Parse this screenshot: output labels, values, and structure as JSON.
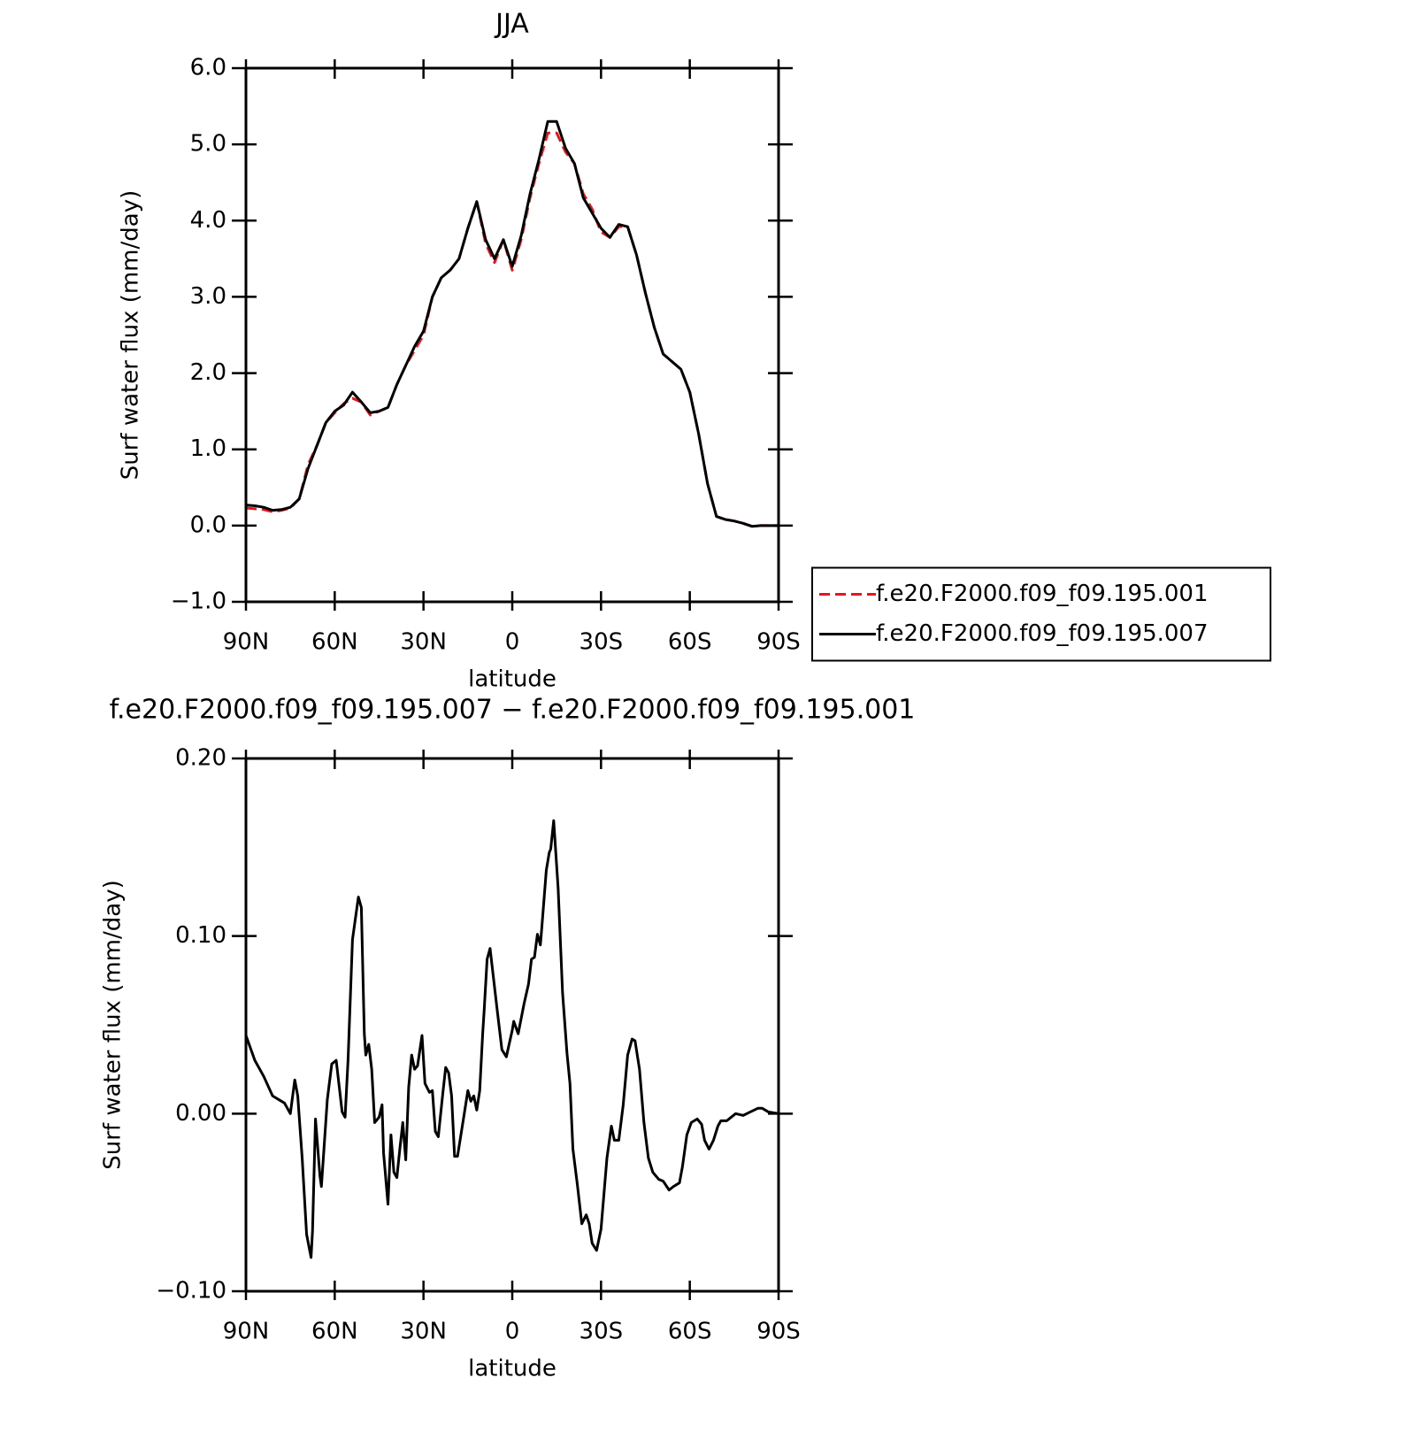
{
  "chart_data": [
    {
      "type": "line",
      "title": "JJA",
      "xlabel": "latitude",
      "ylabel": "Surf water flux (mm/day)",
      "x": [
        90,
        87,
        84,
        81,
        78,
        75,
        72,
        69,
        66,
        63,
        60,
        57,
        54,
        51,
        48,
        45,
        42,
        39,
        36,
        33,
        30,
        27,
        24,
        21,
        18,
        15,
        12,
        9,
        6,
        3,
        0,
        -3,
        -6,
        -9,
        -12,
        -15,
        -18,
        -21,
        -24,
        -27,
        -30,
        -33,
        -36,
        -39,
        -42,
        -45,
        -48,
        -51,
        -54,
        -57,
        -60,
        -63,
        -66,
        -69,
        -72,
        -75,
        -78,
        -81,
        -84,
        -87,
        -90
      ],
      "series": [
        {
          "name": "f.e20.F2000.f09_f09.195.001",
          "color": "#e8151b",
          "dash": true,
          "values": [
            0.23,
            0.22,
            0.21,
            0.18,
            0.2,
            0.23,
            0.35,
            0.8,
            1.05,
            1.35,
            1.48,
            1.6,
            1.67,
            1.62,
            1.45,
            1.5,
            1.55,
            1.85,
            2.1,
            2.3,
            2.5,
            3.0,
            3.25,
            3.35,
            3.5,
            3.9,
            4.25,
            3.7,
            3.45,
            3.75,
            3.35,
            3.75,
            4.3,
            4.75,
            5.15,
            5.15,
            4.9,
            4.75,
            4.35,
            4.15,
            3.85,
            3.78,
            3.92,
            3.92,
            3.55,
            3.05,
            2.6,
            2.25,
            2.15,
            2.05,
            1.75,
            1.2,
            0.55,
            0.12,
            0.08,
            0.06,
            0.03,
            -0.01,
            0.0,
            0.0,
            0.0
          ]
        },
        {
          "name": "f.e20.F2000.f09_f09.195.007",
          "color": "#000000",
          "dash": false,
          "values": [
            0.27,
            0.26,
            0.24,
            0.2,
            0.21,
            0.24,
            0.35,
            0.75,
            1.05,
            1.35,
            1.5,
            1.58,
            1.75,
            1.62,
            1.48,
            1.5,
            1.55,
            1.85,
            2.1,
            2.35,
            2.55,
            3.0,
            3.25,
            3.35,
            3.5,
            3.9,
            4.25,
            3.75,
            3.5,
            3.75,
            3.4,
            3.8,
            4.35,
            4.8,
            5.3,
            5.3,
            4.95,
            4.75,
            4.3,
            4.1,
            3.9,
            3.78,
            3.95,
            3.92,
            3.55,
            3.05,
            2.6,
            2.25,
            2.15,
            2.05,
            1.75,
            1.2,
            0.55,
            0.12,
            0.08,
            0.06,
            0.03,
            -0.01,
            0.0,
            0.0,
            0.0
          ]
        }
      ],
      "xlim": [
        90,
        -90
      ],
      "xticks": [
        {
          "value": 90,
          "label": "90N"
        },
        {
          "value": 60,
          "label": "60N"
        },
        {
          "value": 30,
          "label": "30N"
        },
        0,
        {
          "value": -30,
          "label": "30S"
        },
        {
          "value": -60,
          "label": "60S"
        },
        {
          "value": -90,
          "label": "90S"
        }
      ],
      "ylim": [
        -1,
        6
      ],
      "yticks": [
        {
          "value": -1,
          "label": "−1.0"
        },
        {
          "value": 0,
          "label": "0.0"
        },
        {
          "value": 1,
          "label": "1.0"
        },
        {
          "value": 2,
          "label": "2.0"
        },
        {
          "value": 3,
          "label": "3.0"
        },
        {
          "value": 4,
          "label": "4.0"
        },
        {
          "value": 5,
          "label": "5.0"
        },
        {
          "value": 6,
          "label": "6.0"
        }
      ],
      "legend": "right"
    },
    {
      "type": "line",
      "title": "f.e20.F2000.f09_f09.195.007 − f.e20.F2000.f09_f09.195.001",
      "xlabel": "latitude",
      "ylabel": "Surf water flux (mm/day)",
      "x": [
        90,
        87,
        84,
        81,
        79,
        77,
        75,
        73.5,
        72.5,
        71,
        69.5,
        68,
        67.5,
        66.5,
        65,
        64.5,
        62.5,
        61,
        59.5,
        57.5,
        56.5,
        55.5,
        54,
        52,
        51,
        50,
        49.5,
        48.5,
        47.5,
        46.5,
        45,
        44,
        43.5,
        42,
        41,
        40,
        39,
        38,
        37,
        36,
        35,
        34,
        33,
        32,
        30.5,
        29.5,
        28,
        27,
        26,
        25,
        23.5,
        22.5,
        21.5,
        20.5,
        19.5,
        18.5,
        16.5,
        15,
        14,
        13,
        12,
        11,
        10,
        9.5,
        8.5,
        7.5,
        5,
        3.5,
        2,
        0,
        -0.5,
        -2,
        -4,
        -5.5,
        -6.5,
        -7.5,
        -8.5,
        -9.5,
        -10,
        -11.5,
        -12.5,
        -13,
        -14,
        -15.5,
        -17,
        -18.5,
        -19.5,
        -20.5,
        -22,
        -23.5,
        -25,
        -26,
        -27,
        -28.5,
        -30,
        -31,
        -32,
        -33.5,
        -34.5,
        -36,
        -37.5,
        -39,
        -40.5,
        -41.5,
        -43,
        -44.5,
        -46,
        -47.5,
        -49.5,
        -51,
        -53,
        -54.5,
        -56.5,
        -57.5,
        -59,
        -60.5,
        -62.5,
        -64,
        -65,
        -66.5,
        -68,
        -69.5,
        -70.5,
        -72.5,
        -74,
        -75.5,
        -78,
        -80.5,
        -83,
        -84.5,
        -86.5,
        -90
      ],
      "series": [
        {
          "color": "#000000",
          "dash": false,
          "values": [
            0.044,
            0.03,
            0.021,
            0.01,
            0.008,
            0.006,
            0.0,
            0.019,
            0.01,
            -0.025,
            -0.068,
            -0.081,
            -0.066,
            -0.003,
            -0.035,
            -0.041,
            0.008,
            0.028,
            0.03,
            0.001,
            -0.002,
            0.03,
            0.098,
            0.122,
            0.116,
            0.045,
            0.033,
            0.039,
            0.025,
            -0.005,
            -0.002,
            0.005,
            -0.022,
            -0.051,
            -0.012,
            -0.033,
            -0.036,
            -0.02,
            -0.005,
            -0.026,
            0.015,
            0.033,
            0.025,
            0.027,
            0.044,
            0.017,
            0.012,
            0.013,
            -0.01,
            -0.013,
            0.011,
            0.026,
            0.023,
            0.01,
            -0.024,
            -0.024,
            -0.003,
            0.013,
            0.007,
            0.01,
            0.002,
            0.013,
            0.045,
            0.058,
            0.087,
            0.093,
            0.057,
            0.036,
            0.032,
            0.047,
            0.052,
            0.045,
            0.062,
            0.073,
            0.087,
            0.088,
            0.101,
            0.095,
            0.105,
            0.137,
            0.147,
            0.149,
            0.165,
            0.127,
            0.068,
            0.034,
            0.017,
            -0.02,
            -0.04,
            -0.062,
            -0.057,
            -0.062,
            -0.073,
            -0.077,
            -0.065,
            -0.045,
            -0.025,
            -0.007,
            -0.015,
            -0.015,
            0.005,
            0.033,
            0.042,
            0.041,
            0.025,
            -0.005,
            -0.025,
            -0.033,
            -0.037,
            -0.038,
            -0.043,
            -0.041,
            -0.039,
            -0.03,
            -0.012,
            -0.005,
            -0.003,
            -0.006,
            -0.015,
            -0.02,
            -0.015,
            -0.007,
            -0.004,
            -0.004,
            -0.002,
            0.0,
            -0.001,
            0.001,
            0.003,
            0.003,
            0.001,
            0.0
          ]
        }
      ],
      "xlim": [
        90,
        -90
      ],
      "xticks": [
        {
          "value": 90,
          "label": "90N"
        },
        {
          "value": 60,
          "label": "60N"
        },
        {
          "value": 30,
          "label": "30N"
        },
        0,
        {
          "value": -30,
          "label": "30S"
        },
        {
          "value": -60,
          "label": "60S"
        },
        {
          "value": -90,
          "label": "90S"
        }
      ],
      "ylim": [
        -0.1,
        0.2
      ],
      "yticks": [
        {
          "value": -0.1,
          "label": "−0.10"
        },
        {
          "value": 0,
          "label": "0.00"
        },
        {
          "value": 0.1,
          "label": "0.10"
        },
        {
          "value": 0.2,
          "label": "0.20"
        }
      ]
    }
  ]
}
